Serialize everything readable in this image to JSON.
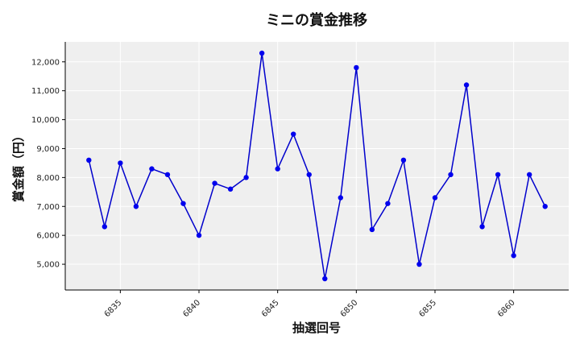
{
  "chart_data": {
    "type": "line",
    "title": "ミニの賞金推移",
    "xlabel": "抽選回号",
    "ylabel": "賞金額（円）",
    "x": [
      6833,
      6834,
      6835,
      6836,
      6837,
      6838,
      6839,
      6840,
      6841,
      6842,
      6843,
      6844,
      6845,
      6846,
      6847,
      6848,
      6849,
      6850,
      6851,
      6852,
      6853,
      6854,
      6855,
      6856,
      6857,
      6858,
      6859,
      6860,
      6861,
      6862
    ],
    "series": [
      {
        "values": [
          8600,
          6300,
          8500,
          7000,
          8300,
          8100,
          7100,
          6000,
          7800,
          7600,
          8000,
          12300,
          8300,
          9500,
          8100,
          4500,
          7300,
          11800,
          6200,
          7100,
          8600,
          5000,
          7300,
          8100,
          11200,
          6300,
          8100,
          5300,
          8100,
          7000
        ]
      }
    ],
    "xticks": [
      6835,
      6840,
      6845,
      6850,
      6855,
      6860
    ],
    "xtick_labels": [
      "6835",
      "6840",
      "6845",
      "6850",
      "6855",
      "6860"
    ],
    "yticks": [
      5000,
      6000,
      7000,
      8000,
      9000,
      10000,
      11000,
      12000
    ],
    "ytick_labels": [
      "5,000",
      "6,000",
      "7,000",
      "8,000",
      "9,000",
      "10,000",
      "11,000",
      "12,000"
    ],
    "xlim": [
      6831.5,
      6863.5
    ],
    "ylim": [
      4110,
      12690
    ],
    "grid": true,
    "colors": {
      "line": "#0000cc",
      "marker": "#0000ee",
      "plot_bg": "#efefef",
      "grid": "#ffffff"
    }
  }
}
